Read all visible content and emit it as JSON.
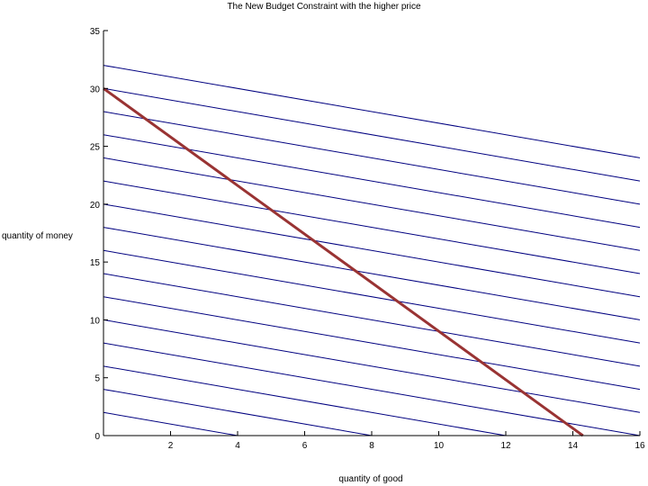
{
  "chart_data": {
    "type": "line",
    "title": "The New Budget Constraint with the higher price",
    "xlabel": "quantity of good",
    "ylabel": "quantity of money",
    "xlim": [
      0,
      16
    ],
    "ylim": [
      0,
      35
    ],
    "x_ticks": [
      2,
      4,
      6,
      8,
      10,
      12,
      14,
      16
    ],
    "y_ticks": [
      0,
      5,
      10,
      15,
      20,
      25,
      30,
      35
    ],
    "x_tick_labels": [
      "2",
      "4",
      "6",
      "8",
      "10",
      "12",
      "14",
      "16"
    ],
    "y_tick_labels": [
      "0",
      "5",
      "10",
      "15",
      "20",
      "25",
      "30",
      "35"
    ],
    "grid": false,
    "budget_line": {
      "x": [
        0,
        14.3
      ],
      "y": [
        30,
        0
      ],
      "color": "#993333"
    },
    "indifference_lines": {
      "slope": -0.5,
      "intercepts": [
        2,
        4,
        6,
        8,
        10,
        12,
        14,
        16,
        18,
        20,
        22,
        24,
        26,
        28,
        30,
        32
      ],
      "color": "#000080"
    }
  }
}
